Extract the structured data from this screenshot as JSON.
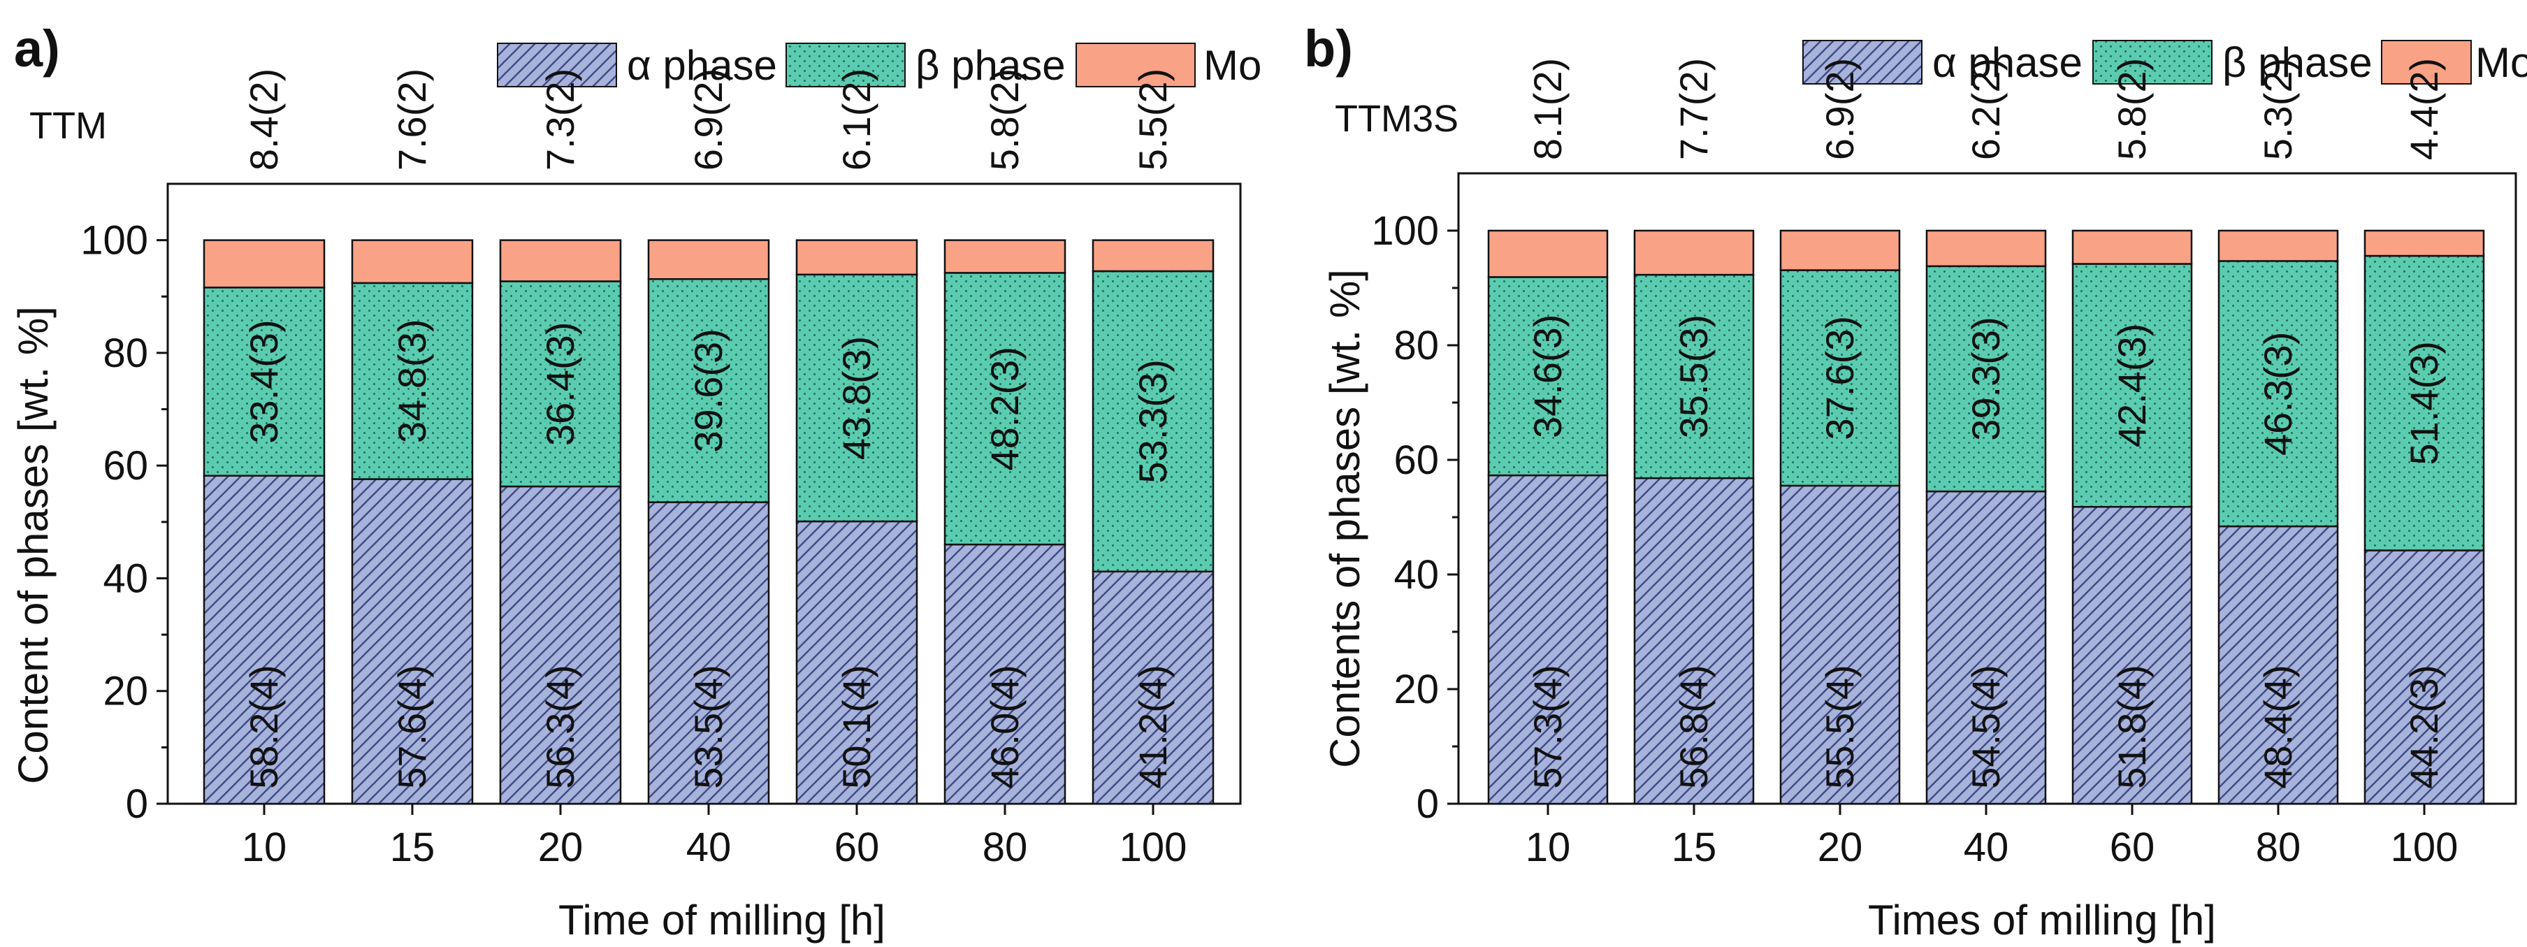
{
  "colors": {
    "alpha_fill": "#A7B3DA",
    "alpha_hatch": "#3F4A86",
    "beta_fill": "#5BCCB0",
    "beta_dots": "#1F6E5E",
    "mo_fill": "#F9A286",
    "axis": "#111111"
  },
  "legend": [
    "α phase",
    "β phase",
    "Mo"
  ],
  "chart_data": [
    {
      "type": "bar",
      "stacked": true,
      "panel": "a)",
      "sample": "TTM",
      "categories": [
        "10",
        "15",
        "20",
        "40",
        "60",
        "80",
        "100"
      ],
      "xlabel": "Time of milling [h]",
      "ylabel": "Content of phases [wt. %]",
      "ylim": [
        0,
        110
      ],
      "yticks": [
        "0",
        "20",
        "40",
        "60",
        "80",
        "100"
      ],
      "grid": false,
      "legend_position": "top",
      "series": [
        {
          "name": "α phase",
          "values": [
            58.2,
            57.6,
            56.3,
            53.5,
            50.1,
            46.0,
            41.2
          ],
          "labels": [
            "58.2(4)",
            "57.6(4)",
            "56.3(4)",
            "53.5(4)",
            "50.1(4)",
            "46.0(4)",
            "41.2(4)"
          ]
        },
        {
          "name": "β phase",
          "values": [
            33.4,
            34.8,
            36.4,
            39.6,
            43.8,
            48.2,
            53.3
          ],
          "labels": [
            "33.4(3)",
            "34.8(3)",
            "36.4(3)",
            "39.6(3)",
            "43.8(3)",
            "48.2(3)",
            "53.3(3)"
          ]
        },
        {
          "name": "Mo",
          "values": [
            8.4,
            7.6,
            7.3,
            6.9,
            6.1,
            5.8,
            5.5
          ],
          "labels": [
            "8.4(2)",
            "7.6(2)",
            "7.3(2)",
            "6.9(2)",
            "6.1(2)",
            "5.8(2)",
            "5.5(2)"
          ]
        }
      ]
    },
    {
      "type": "bar",
      "stacked": true,
      "panel": "b)",
      "sample": "TTM3S",
      "categories": [
        "10",
        "15",
        "20",
        "40",
        "60",
        "80",
        "100"
      ],
      "xlabel": "Times of milling [h]",
      "ylabel": "Contents of phases [wt. %]",
      "ylim": [
        0,
        110
      ],
      "yticks": [
        "0",
        "20",
        "40",
        "60",
        "80",
        "100"
      ],
      "grid": false,
      "legend_position": "top",
      "series": [
        {
          "name": "α phase",
          "values": [
            57.3,
            56.8,
            55.5,
            54.5,
            51.8,
            48.4,
            44.2
          ],
          "labels": [
            "57.3(4)",
            "56.8(4)",
            "55.5(4)",
            "54.5(4)",
            "51.8(4)",
            "48.4(4)",
            "44.2(3)"
          ]
        },
        {
          "name": "β phase",
          "values": [
            34.6,
            35.5,
            37.6,
            39.3,
            42.4,
            46.3,
            51.4
          ],
          "labels": [
            "34.6(3)",
            "35.5(3)",
            "37.6(3)",
            "39.3(3)",
            "42.4(3)",
            "46.3(3)",
            "51.4(3)"
          ]
        },
        {
          "name": "Mo",
          "values": [
            8.1,
            7.7,
            6.9,
            6.2,
            5.8,
            5.3,
            4.4
          ],
          "labels": [
            "8.1(2)",
            "7.7(2)",
            "6.9(2)",
            "6.2(2)",
            "5.8(2)",
            "5.3(2)",
            "4.4(2)"
          ]
        }
      ]
    }
  ]
}
